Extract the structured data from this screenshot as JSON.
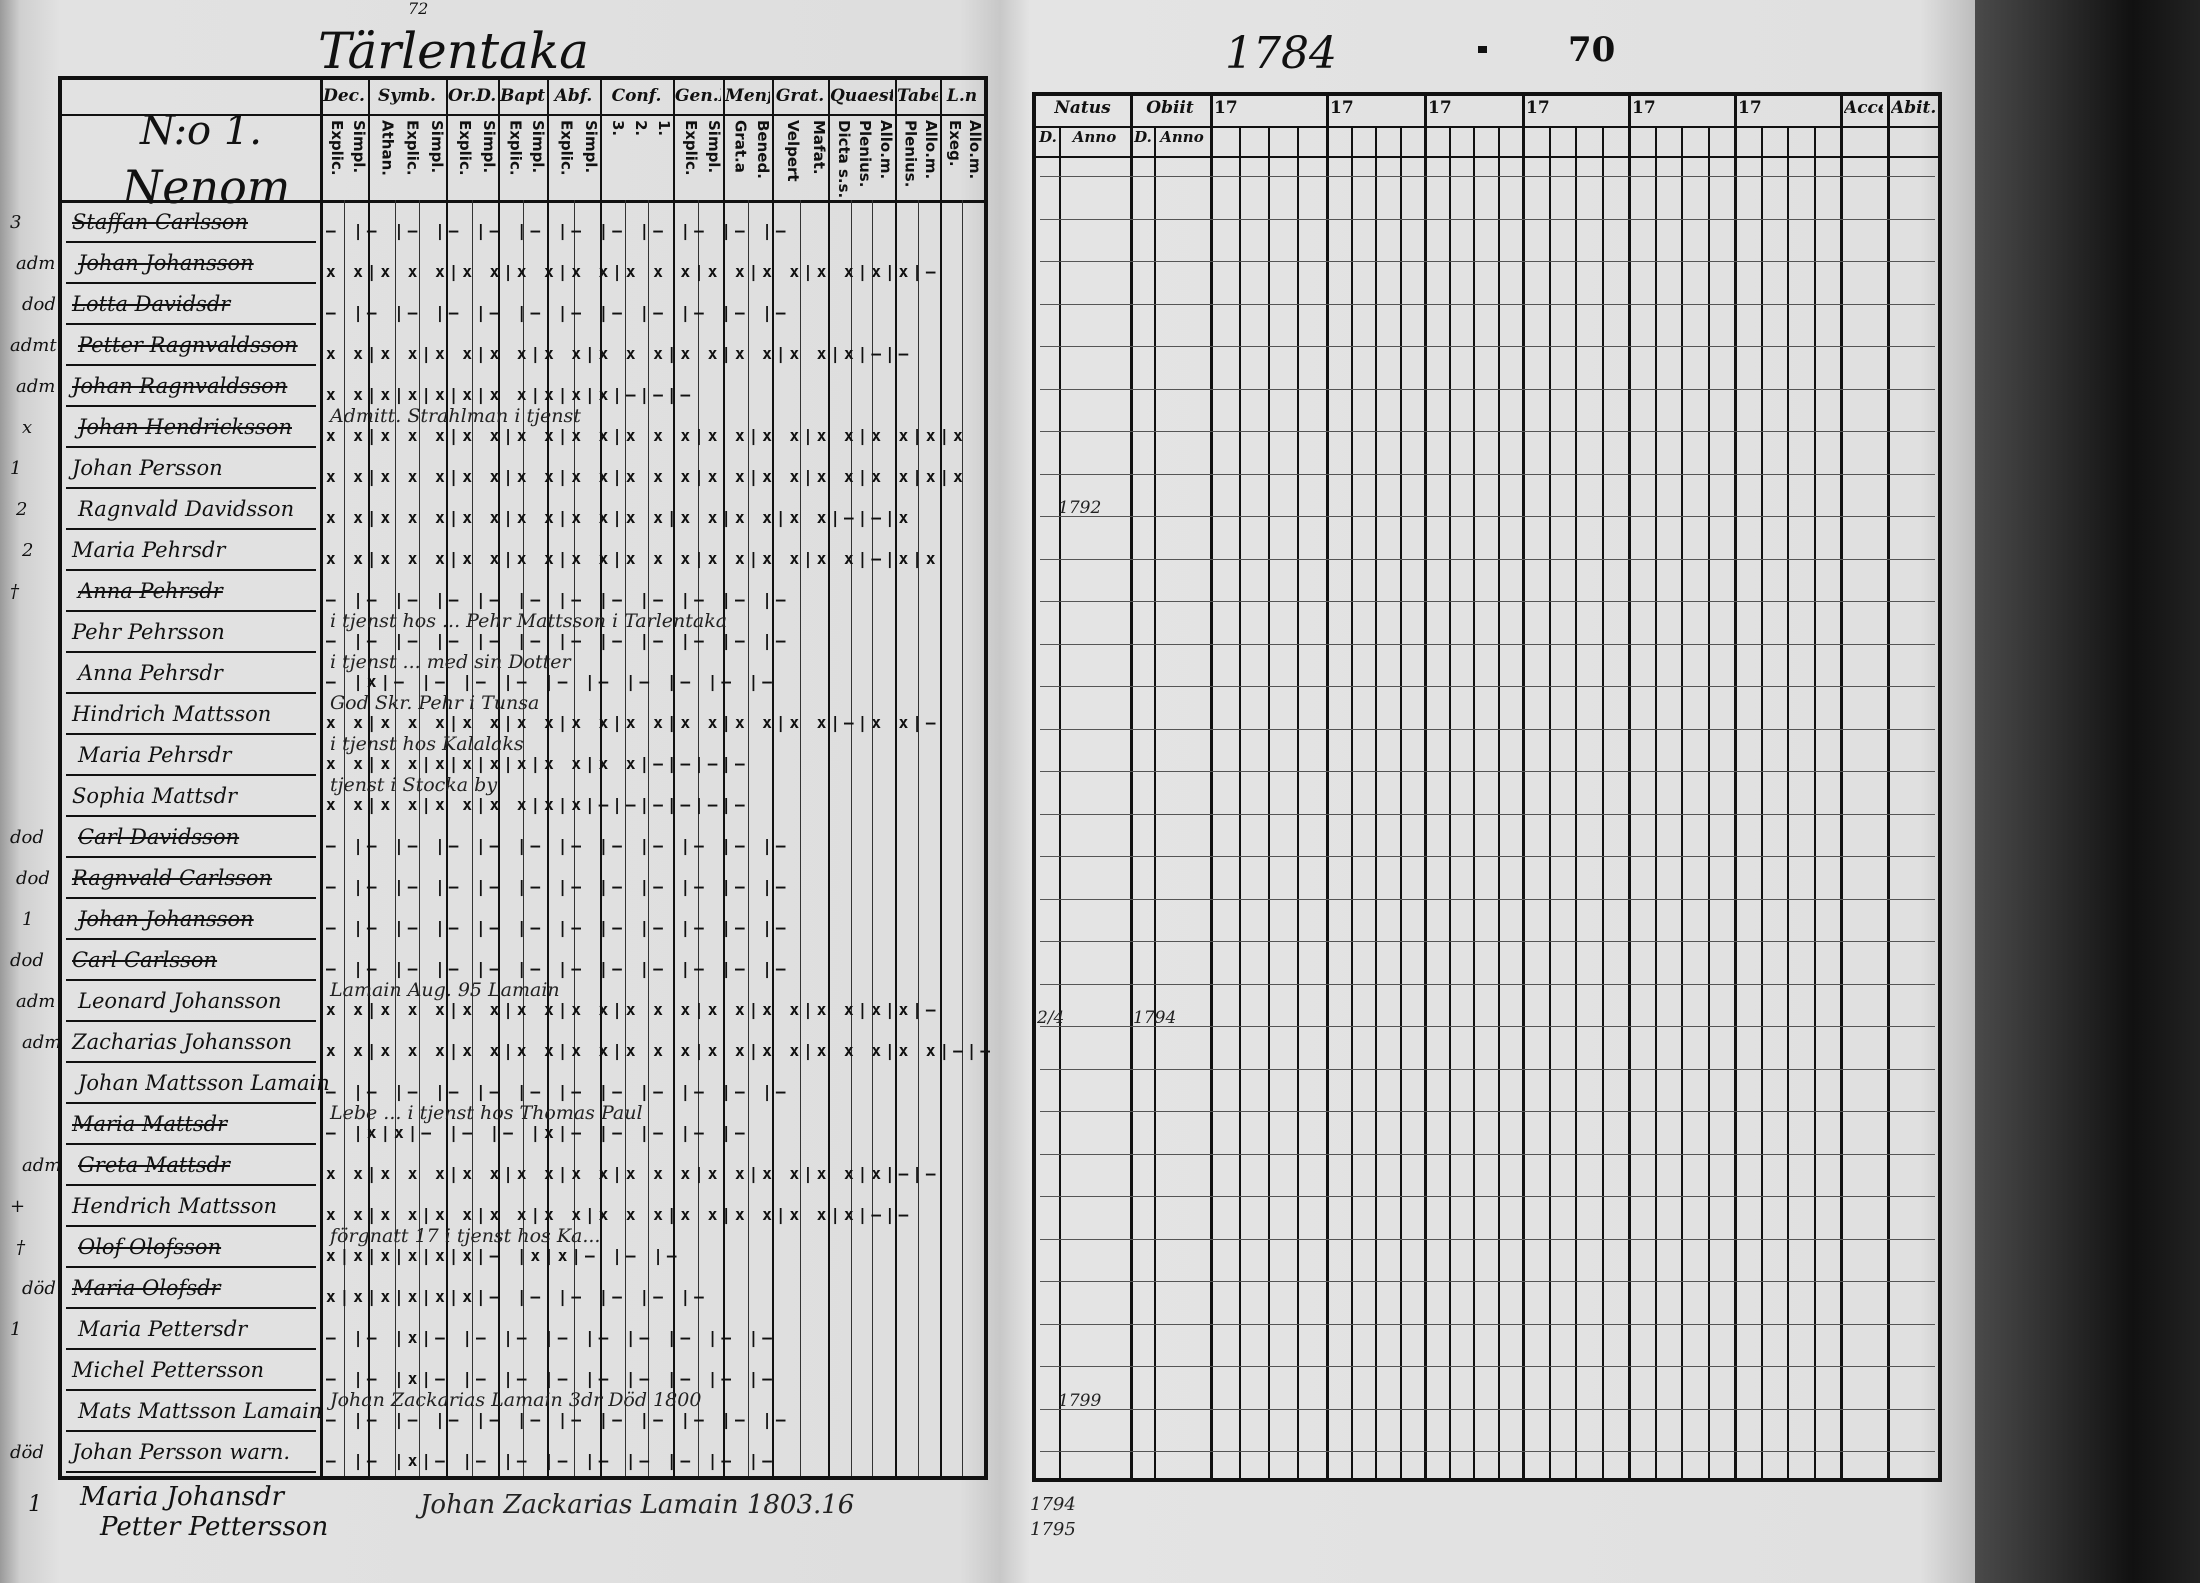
{
  "left_page": {
    "parish_title": "Tärlentaka",
    "page_number_small": "72",
    "household_number": "N:o 1.",
    "village": "Nenom",
    "columns": [
      {
        "header": "Dec.",
        "sub": [
          "Explic.",
          "Simpl."
        ]
      },
      {
        "header": "Symb.",
        "sub": [
          "Athan.",
          "Explic.",
          "Simpl."
        ]
      },
      {
        "header": "Or.D.",
        "sub": [
          "Explic.",
          "Simpl."
        ]
      },
      {
        "header": "Bapt.",
        "sub": [
          "Explic.",
          "Simpl."
        ]
      },
      {
        "header": "Abf.",
        "sub": [
          "Explic.",
          "Simpl."
        ]
      },
      {
        "header": "Conf.",
        "sub": [
          "3.",
          "2.",
          "1."
        ]
      },
      {
        "header": "Gen.D",
        "sub": [
          "Explic.",
          "Simpl."
        ]
      },
      {
        "header": "Menf.",
        "sub": [
          "Grat.a",
          "Bened."
        ]
      },
      {
        "header": "Grat.",
        "sub": [
          "Velpert",
          "Mafat."
        ]
      },
      {
        "header": "Quaest.",
        "sub": [
          "Dicta s.s.",
          "Plenius.",
          "Allo.m."
        ]
      },
      {
        "header": "Tabe.",
        "sub": [
          "Plenius.",
          "Allo.m."
        ]
      },
      {
        "header": "L.n",
        "sub": [
          "Exeg.",
          "Allo.m."
        ]
      }
    ],
    "rows": [
      {
        "margin": "3",
        "name": "Staffan Carlsson",
        "struck": true,
        "marks": "— |— |— |— |— |— |— |— |— |— |— |—"
      },
      {
        "margin": "adm",
        "name": "Johan Johansson",
        "struck": true,
        "marks": "x x|x x x|x x|x x|x x|x x x|x x|x x|x x|x|x|—"
      },
      {
        "margin": "dod",
        "name": "Lotta Davidsdr",
        "struck": true,
        "marks": "— |— |— |— |— |— |— |— |— |— |— |—"
      },
      {
        "margin": "admt",
        "name": "Petter Ragnvaldsson",
        "struck": true,
        "marks": "x x|x x|x x|x x|x x|x x x|x x|x x|x x|x|—|—"
      },
      {
        "margin": "adm",
        "name": "Johan Ragnvaldsson",
        "struck": true,
        "marks": "x x|x|x|x|x|x x|x|x|x|—|—|—"
      },
      {
        "margin": "x",
        "name": "Johan Hendricksson",
        "struck": true,
        "marks": "x x|x x x|x x|x x|x x|x x x|x x|x x|x x|x x|x|x"
      },
      {
        "margin": "1",
        "name": "Johan Persson",
        "struck": false,
        "marks": "x x|x x x|x x|x x|x x|x x x|x x|x x|x x|x x|x|x"
      },
      {
        "margin": "2",
        "name": "Ragnvald Davidsson",
        "struck": false,
        "marks": "x x|x x x|x x|x x|x x|x x|x x|x x|x x|—|—|x"
      },
      {
        "margin": "2",
        "name": "Maria Pehrsdr",
        "struck": false,
        "marks": "x x|x x x|x x|x x|x x|x x x|x x|x x|x x|—|x|x"
      },
      {
        "margin": "†",
        "name": "Anna Pehrsdr",
        "struck": true,
        "marks": "— |— |— |— |— |— |— |— |— |— |— |—"
      },
      {
        "margin": "",
        "name": "Pehr Pehrsson",
        "struck": false,
        "marks": "— |— |— |— |— |— |— |— |— |— |— |—"
      },
      {
        "margin": "",
        "name": "Anna Pehrsdr",
        "struck": false,
        "marks": "— |x|— |— |— |— |— |— |— |— |— |—"
      },
      {
        "margin": "",
        "name": "Hindrich Mattsson",
        "struck": false,
        "marks": "x x|x x x|x x|x x|x x|x x|x x|x x|x x|—|x x|—"
      },
      {
        "margin": "",
        "name": "Maria Pehrsdr",
        "struck": false,
        "marks": "x x|x x|x|x|x|x|x x|x x|—|—|—|—"
      },
      {
        "margin": "",
        "name": "Sophia Mattsdr",
        "struck": false,
        "marks": "x x|x x|x x|x x|x|x|—|—|—|—|—|—"
      },
      {
        "margin": "dod",
        "name": "Carl Davidsson",
        "struck": true,
        "marks": "— |— |— |— |— |— |— |— |— |— |— |—"
      },
      {
        "margin": "dod",
        "name": "Ragnvald Carlsson",
        "struck": true,
        "marks": "— |— |— |— |— |— |— |— |— |— |— |—"
      },
      {
        "margin": "1",
        "name": "Johan Johansson",
        "struck": true,
        "marks": "— |— |— |— |— |— |— |— |— |— |— |—"
      },
      {
        "margin": "dod",
        "name": "Carl Carlsson",
        "struck": true,
        "marks": "— |— |— |— |— |— |— |— |— |— |— |—"
      },
      {
        "margin": "adm",
        "name": "Leonard Johansson",
        "struck": false,
        "marks": "x x|x x x|x x|x x|x x|x x x|x x|x x|x x|x|x|—"
      },
      {
        "margin": "adm",
        "name": "Zacharias Johansson",
        "struck": false,
        "marks": "x x|x x x|x x|x x|x x|x x x|x x|x x|x x x|x x|—|—"
      },
      {
        "margin": "",
        "name": "Johan Mattsson Lamain",
        "struck": false,
        "marks": "— |— |— |— |— |— |— |— |— |— |— |—"
      },
      {
        "margin": "",
        "name": "Maria Mattsdr",
        "struck": true,
        "marks": "— |x|x|— |— |— |x|— |— |— |— |—"
      },
      {
        "margin": "adm",
        "name": "Greta Mattsdr",
        "struck": true,
        "marks": "x x|x x x|x x|x x|x x|x x x|x x|x x|x x|x|—|—"
      },
      {
        "margin": "+",
        "name": "Hendrich Mattsson",
        "struck": false,
        "marks": "x x|x x|x x|x x|x x|x x x|x x|x x|x x|x|—|—"
      },
      {
        "margin": "†",
        "name": "Olof Olofsson",
        "struck": true,
        "marks": "x|x|x|x|x|x|— |x|x|— |— |—"
      },
      {
        "margin": "död",
        "name": "Maria Olofsdr",
        "struck": true,
        "marks": "x|x|x|x|x|x|— |— |— |— |— |—"
      },
      {
        "margin": "1",
        "name": "Maria Pettersdr",
        "struck": false,
        "marks": "— |— |x|— |— |— |— |— |— |— |— |—"
      },
      {
        "margin": "",
        "name": "Michel Pettersson",
        "struck": false,
        "marks": "— |— |x|— |— |— |— |— |— |— |— |—"
      },
      {
        "margin": "",
        "name": "Mats Mattsson Lamain",
        "struck": false,
        "marks": "— |— |— |— |— |— |— |— |— |— |— |—"
      },
      {
        "margin": "död",
        "name": "Johan Persson warn.",
        "struck": false,
        "marks": "— |— |x|— |— |— |— |— |— |— |— |—"
      }
    ],
    "annotations": [
      {
        "row": 5,
        "text": "Admitt. Strahlman i tjenst"
      },
      {
        "row": 10,
        "text": "i tjenst hos ... Pehr Mattsson i Tarlentaka"
      },
      {
        "row": 11,
        "text": "i tjenst ... med sin Dotter"
      },
      {
        "row": 12,
        "text": "God Skr. Pehr i Tunsa"
      },
      {
        "row": 13,
        "text": "i tjenst hos Kalalaks"
      },
      {
        "row": 14,
        "text": "tjenst i Stocka by"
      },
      {
        "row": 19,
        "text": "Lamain Aug. 95 Lamain"
      },
      {
        "row": 22,
        "text": "Lebe ... i tjenst hos Thomas Paul"
      },
      {
        "row": 25,
        "text": "förgnatt 17 i tjenst hos Ka..."
      },
      {
        "row": 29,
        "text": "Johan Zackarias Lamain 3dr Död 1800"
      }
    ],
    "footer_names": [
      "Maria Johansdr",
      "Petter Pettersson"
    ],
    "footer_margin": "1",
    "footer_note": "Johan Zackarias Lamain 1803.16"
  },
  "right_page": {
    "year": "1784",
    "page_number": "70",
    "columns": [
      {
        "header": "Natus",
        "sub": [
          "D.",
          "Anno"
        ]
      },
      {
        "header": "Obiit",
        "sub": [
          "D.",
          "Anno"
        ]
      },
      {
        "header": "17"
      },
      {
        "header": "17"
      },
      {
        "header": "17"
      },
      {
        "header": "17"
      },
      {
        "header": "17"
      },
      {
        "header": "17"
      },
      {
        "header": "Accef."
      },
      {
        "header": "Abit."
      }
    ],
    "entries": [
      {
        "row": 8,
        "col": "natus_anno",
        "text": "1792"
      },
      {
        "row": 20,
        "col": "natus_d",
        "text": "2/4"
      },
      {
        "row": 20,
        "col": "obiit_d",
        "text": "1794"
      },
      {
        "row": 29,
        "col": "natus_anno",
        "text": "1799"
      }
    ],
    "footer_notes": [
      "1794",
      "1795"
    ]
  }
}
